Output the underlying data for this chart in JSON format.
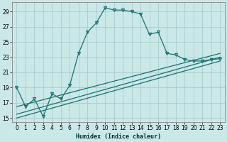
{
  "title": "",
  "xlabel": "Humidex (Indice chaleur)",
  "ylabel": "",
  "background_color": "#cbe8e8",
  "grid_color": "#a8cccc",
  "line_color": "#1a7070",
  "xlim": [
    -0.5,
    23.5
  ],
  "ylim": [
    14.5,
    30.2
  ],
  "xticks": [
    0,
    1,
    2,
    3,
    4,
    5,
    6,
    7,
    8,
    9,
    10,
    11,
    12,
    13,
    14,
    15,
    16,
    17,
    18,
    19,
    20,
    21,
    22,
    23
  ],
  "yticks": [
    15,
    17,
    19,
    21,
    23,
    25,
    27,
    29
  ],
  "main_line": {
    "x": [
      0,
      1,
      2,
      3,
      4,
      5,
      6,
      7,
      8,
      9,
      10,
      11,
      12,
      13,
      14,
      15,
      16,
      17,
      18,
      19,
      20,
      21,
      22,
      23
    ],
    "y": [
      19.0,
      16.5,
      17.5,
      15.2,
      18.2,
      17.5,
      19.3,
      23.5,
      26.3,
      27.5,
      29.5,
      29.2,
      29.2,
      29.0,
      28.7,
      26.0,
      26.3,
      23.5,
      23.3,
      22.7,
      22.5,
      22.5,
      22.7,
      22.8
    ]
  },
  "slow_lines": [
    {
      "x": [
        0,
        23
      ],
      "y": [
        15.0,
        22.5
      ]
    },
    {
      "x": [
        0,
        23
      ],
      "y": [
        15.5,
        23.0
      ]
    },
    {
      "x": [
        0,
        23
      ],
      "y": [
        16.5,
        23.5
      ]
    }
  ]
}
